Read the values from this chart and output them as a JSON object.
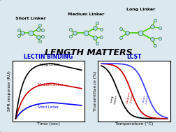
{
  "title": "LENGTH MATTERS",
  "title_fontsize": 9,
  "background_color": "#dce8f0",
  "panel_bg": "#f0f4f8",
  "outer_bg": "#ccdde8",
  "lectin_title": "LECTIN BINDING",
  "lcst_title": "LCST",
  "lectin_xlabel": "Time (sec)",
  "lectin_ylabel": "SPR response (RU)",
  "lcst_xlabel": "Temperature (°C)",
  "lcst_ylabel": "Transmittance (%)",
  "linker_labels": [
    "Short Linker",
    "Medium Linker",
    "Long Linker"
  ],
  "colors": {
    "short": "#0000ff",
    "medium": "#cc0000",
    "long": "#000000"
  },
  "colors_lcst": {
    "long": "#000000",
    "medium": "#cc0000",
    "short": "#4444ff"
  },
  "molecule_colors": {
    "chain": "#44cc00",
    "node": "#aaddff",
    "outline": "#336600"
  }
}
